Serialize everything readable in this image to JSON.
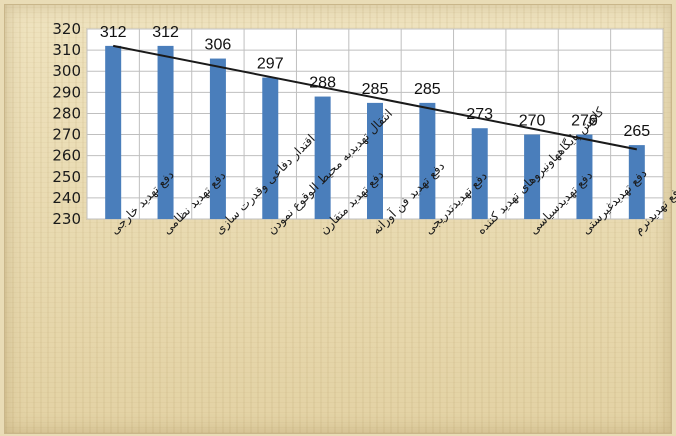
{
  "chart_data": {
    "type": "bar",
    "categories": [
      "دفع تهدید خارجی",
      "دفع تهدید نظامی",
      "اقتدار دفاعی وقدرت سازی",
      "انتقال تهدیدبه محیط الوقوع نمودن",
      "دفع تهدید متقارن",
      "دفع تهدید فن آورانه",
      "دفع تهدیدتدریجی",
      "کاهش پایگاههاونیروهای تهدید کننده",
      "دفع تهدیدسیاسی",
      "دفع تهدیدغیرستی",
      "دفع تهدیدنرم"
    ],
    "values": [
      312,
      312,
      306,
      297,
      288,
      285,
      285,
      273,
      270,
      270,
      265
    ],
    "data_labels": [
      "312",
      "312",
      "306",
      "297",
      "288",
      "285",
      "285",
      "273",
      "270",
      "270",
      "265"
    ],
    "y_ticks": [
      "230",
      "240",
      "250",
      "260",
      "270",
      "280",
      "290",
      "300",
      "310",
      "320"
    ],
    "ylim": [
      230,
      320
    ],
    "grid": true,
    "trendline": {
      "type": "linear",
      "from": 312,
      "to": 263
    },
    "colors": {
      "bar": "#4a7ebb",
      "trend": "#1a1a1a",
      "grid": "#bfbfbf"
    }
  }
}
